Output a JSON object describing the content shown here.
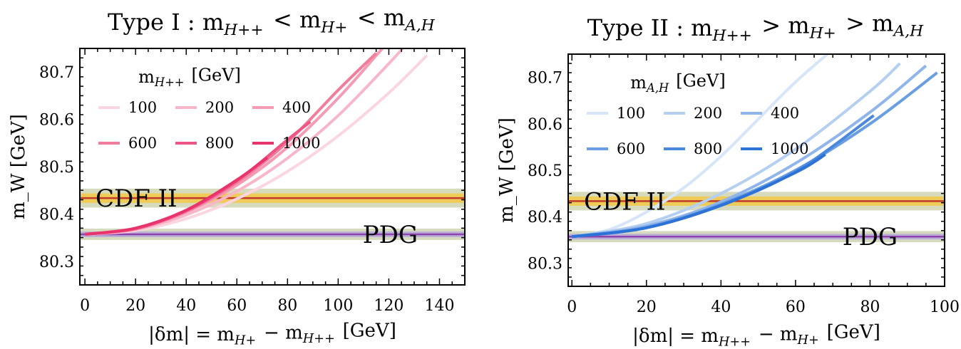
{
  "chart_data": [
    {
      "type": "line",
      "title": "Type I : m_{H++} < m_{H+} < m_{A,H}",
      "xlabel": "|δm| = m_{H+} − m_{H++} [GeV]",
      "ylabel": "m_W [GeV]",
      "xlim": [
        -2,
        150
      ],
      "ylim": [
        80.25,
        80.75
      ],
      "xticks": [
        0,
        20,
        40,
        60,
        80,
        100,
        120,
        140
      ],
      "yticks": [
        80.3,
        80.4,
        80.5,
        80.6,
        80.7
      ],
      "grid": false,
      "legend": {
        "title": "m_{H++} [GeV]",
        "placement": "top-left",
        "entries": [
          "100",
          "200",
          "400",
          "600",
          "800",
          "1000"
        ]
      },
      "bands": [
        {
          "name": "CDF II",
          "center": 80.4335,
          "inner": [
            80.4235,
            80.4435
          ],
          "outer": [
            80.4135,
            80.4535
          ],
          "line_color": "#c0392b",
          "inner_color": "#f2c94c",
          "outer_color": "#c9cfa8"
        },
        {
          "name": "PDG",
          "center": 80.357,
          "inner": [
            80.351,
            80.363
          ],
          "outer": [
            80.345,
            80.369
          ],
          "line_color": "#8e44ad",
          "inner_color": "#b8a9d9",
          "outer_color": "#c9cfa8"
        }
      ],
      "series": [
        {
          "name": "100",
          "color": "#fbd5df",
          "x": [
            0,
            20,
            40,
            60,
            80,
            100,
            120,
            135
          ],
          "y": [
            80.357,
            80.365,
            80.39,
            80.432,
            80.49,
            80.565,
            80.656,
            80.735
          ]
        },
        {
          "name": "200",
          "color": "#f8b7c9",
          "x": [
            0,
            20,
            40,
            60,
            80,
            100,
            120,
            127
          ],
          "y": [
            80.357,
            80.367,
            80.398,
            80.448,
            80.518,
            80.608,
            80.718,
            80.76
          ]
        },
        {
          "name": "400",
          "color": "#f59bb4",
          "x": [
            0,
            20,
            40,
            60,
            80,
            100,
            115,
            120
          ],
          "y": [
            80.357,
            80.368,
            80.404,
            80.461,
            80.541,
            80.645,
            80.735,
            80.766
          ]
        },
        {
          "name": "600",
          "color": "#f17c9c",
          "x": [
            0,
            20,
            40,
            60,
            80,
            100,
            115
          ],
          "y": [
            80.357,
            80.369,
            80.406,
            80.467,
            80.552,
            80.662,
            80.74
          ]
        },
        {
          "name": "800",
          "color": "#ed5585",
          "x": [
            0,
            20,
            40,
            60,
            80,
            89
          ],
          "y": [
            80.357,
            80.369,
            80.407,
            80.47,
            80.557,
            80.595
          ]
        },
        {
          "name": "1000",
          "color": "#e8336d",
          "x": [
            0,
            20,
            40,
            60,
            72
          ],
          "y": [
            80.357,
            80.37,
            80.408,
            80.472,
            80.519
          ]
        }
      ],
      "annotations": [
        "CDF II",
        "PDG"
      ]
    },
    {
      "type": "line",
      "title": "Type II : m_{H++} > m_{H+} > m_{A,H}",
      "xlabel": "|δm| = m_{H++} − m_{H+} [GeV]",
      "ylabel": "m_W [GeV]",
      "xlim": [
        -1,
        100
      ],
      "ylim": [
        80.25,
        80.75
      ],
      "xticks": [
        0,
        20,
        40,
        60,
        80,
        100
      ],
      "yticks": [
        80.3,
        80.4,
        80.5,
        80.6,
        80.7
      ],
      "grid": false,
      "legend": {
        "title": "m_{A,H} [GeV]",
        "placement": "top-left",
        "entries": [
          "100",
          "200",
          "400",
          "600",
          "800",
          "1000"
        ]
      },
      "bands": [
        {
          "name": "CDF II",
          "center": 80.4335,
          "inner": [
            80.4235,
            80.4435
          ],
          "outer": [
            80.4135,
            80.4535
          ],
          "line_color": "#c0392b",
          "inner_color": "#f2c94c",
          "outer_color": "#c9cfa8"
        },
        {
          "name": "PDG",
          "center": 80.357,
          "inner": [
            80.351,
            80.363
          ],
          "outer": [
            80.345,
            80.369
          ],
          "line_color": "#8e44ad",
          "inner_color": "#b8a9d9",
          "outer_color": "#c9cfa8"
        }
      ],
      "series": [
        {
          "name": "100",
          "color": "#d6e5f8",
          "x": [
            0,
            10,
            20,
            30,
            40,
            50,
            60,
            70
          ],
          "y": [
            80.357,
            80.372,
            80.41,
            80.462,
            80.53,
            80.61,
            80.69,
            80.76
          ]
        },
        {
          "name": "200",
          "color": "#b5cff1",
          "x": [
            0,
            20,
            40,
            60,
            80,
            88
          ],
          "y": [
            80.357,
            80.385,
            80.45,
            80.545,
            80.67,
            80.73
          ]
        },
        {
          "name": "400",
          "color": "#8fb5ea",
          "x": [
            0,
            20,
            40,
            60,
            80,
            95
          ],
          "y": [
            80.357,
            80.38,
            80.432,
            80.515,
            80.625,
            80.725
          ]
        },
        {
          "name": "600",
          "color": "#6a9ee3",
          "x": [
            0,
            20,
            40,
            60,
            80,
            98
          ],
          "y": [
            80.357,
            80.377,
            80.427,
            80.5,
            80.6,
            80.71
          ]
        },
        {
          "name": "800",
          "color": "#4a88dc",
          "x": [
            0,
            20,
            40,
            60,
            81
          ],
          "y": [
            80.357,
            80.376,
            80.425,
            80.497,
            80.618
          ]
        },
        {
          "name": "1000",
          "color": "#2d72d6",
          "x": [
            0,
            20,
            40,
            60,
            68
          ],
          "y": [
            80.357,
            80.376,
            80.424,
            80.495,
            80.534
          ]
        }
      ],
      "annotations": [
        "CDF II",
        "PDG"
      ]
    }
  ]
}
